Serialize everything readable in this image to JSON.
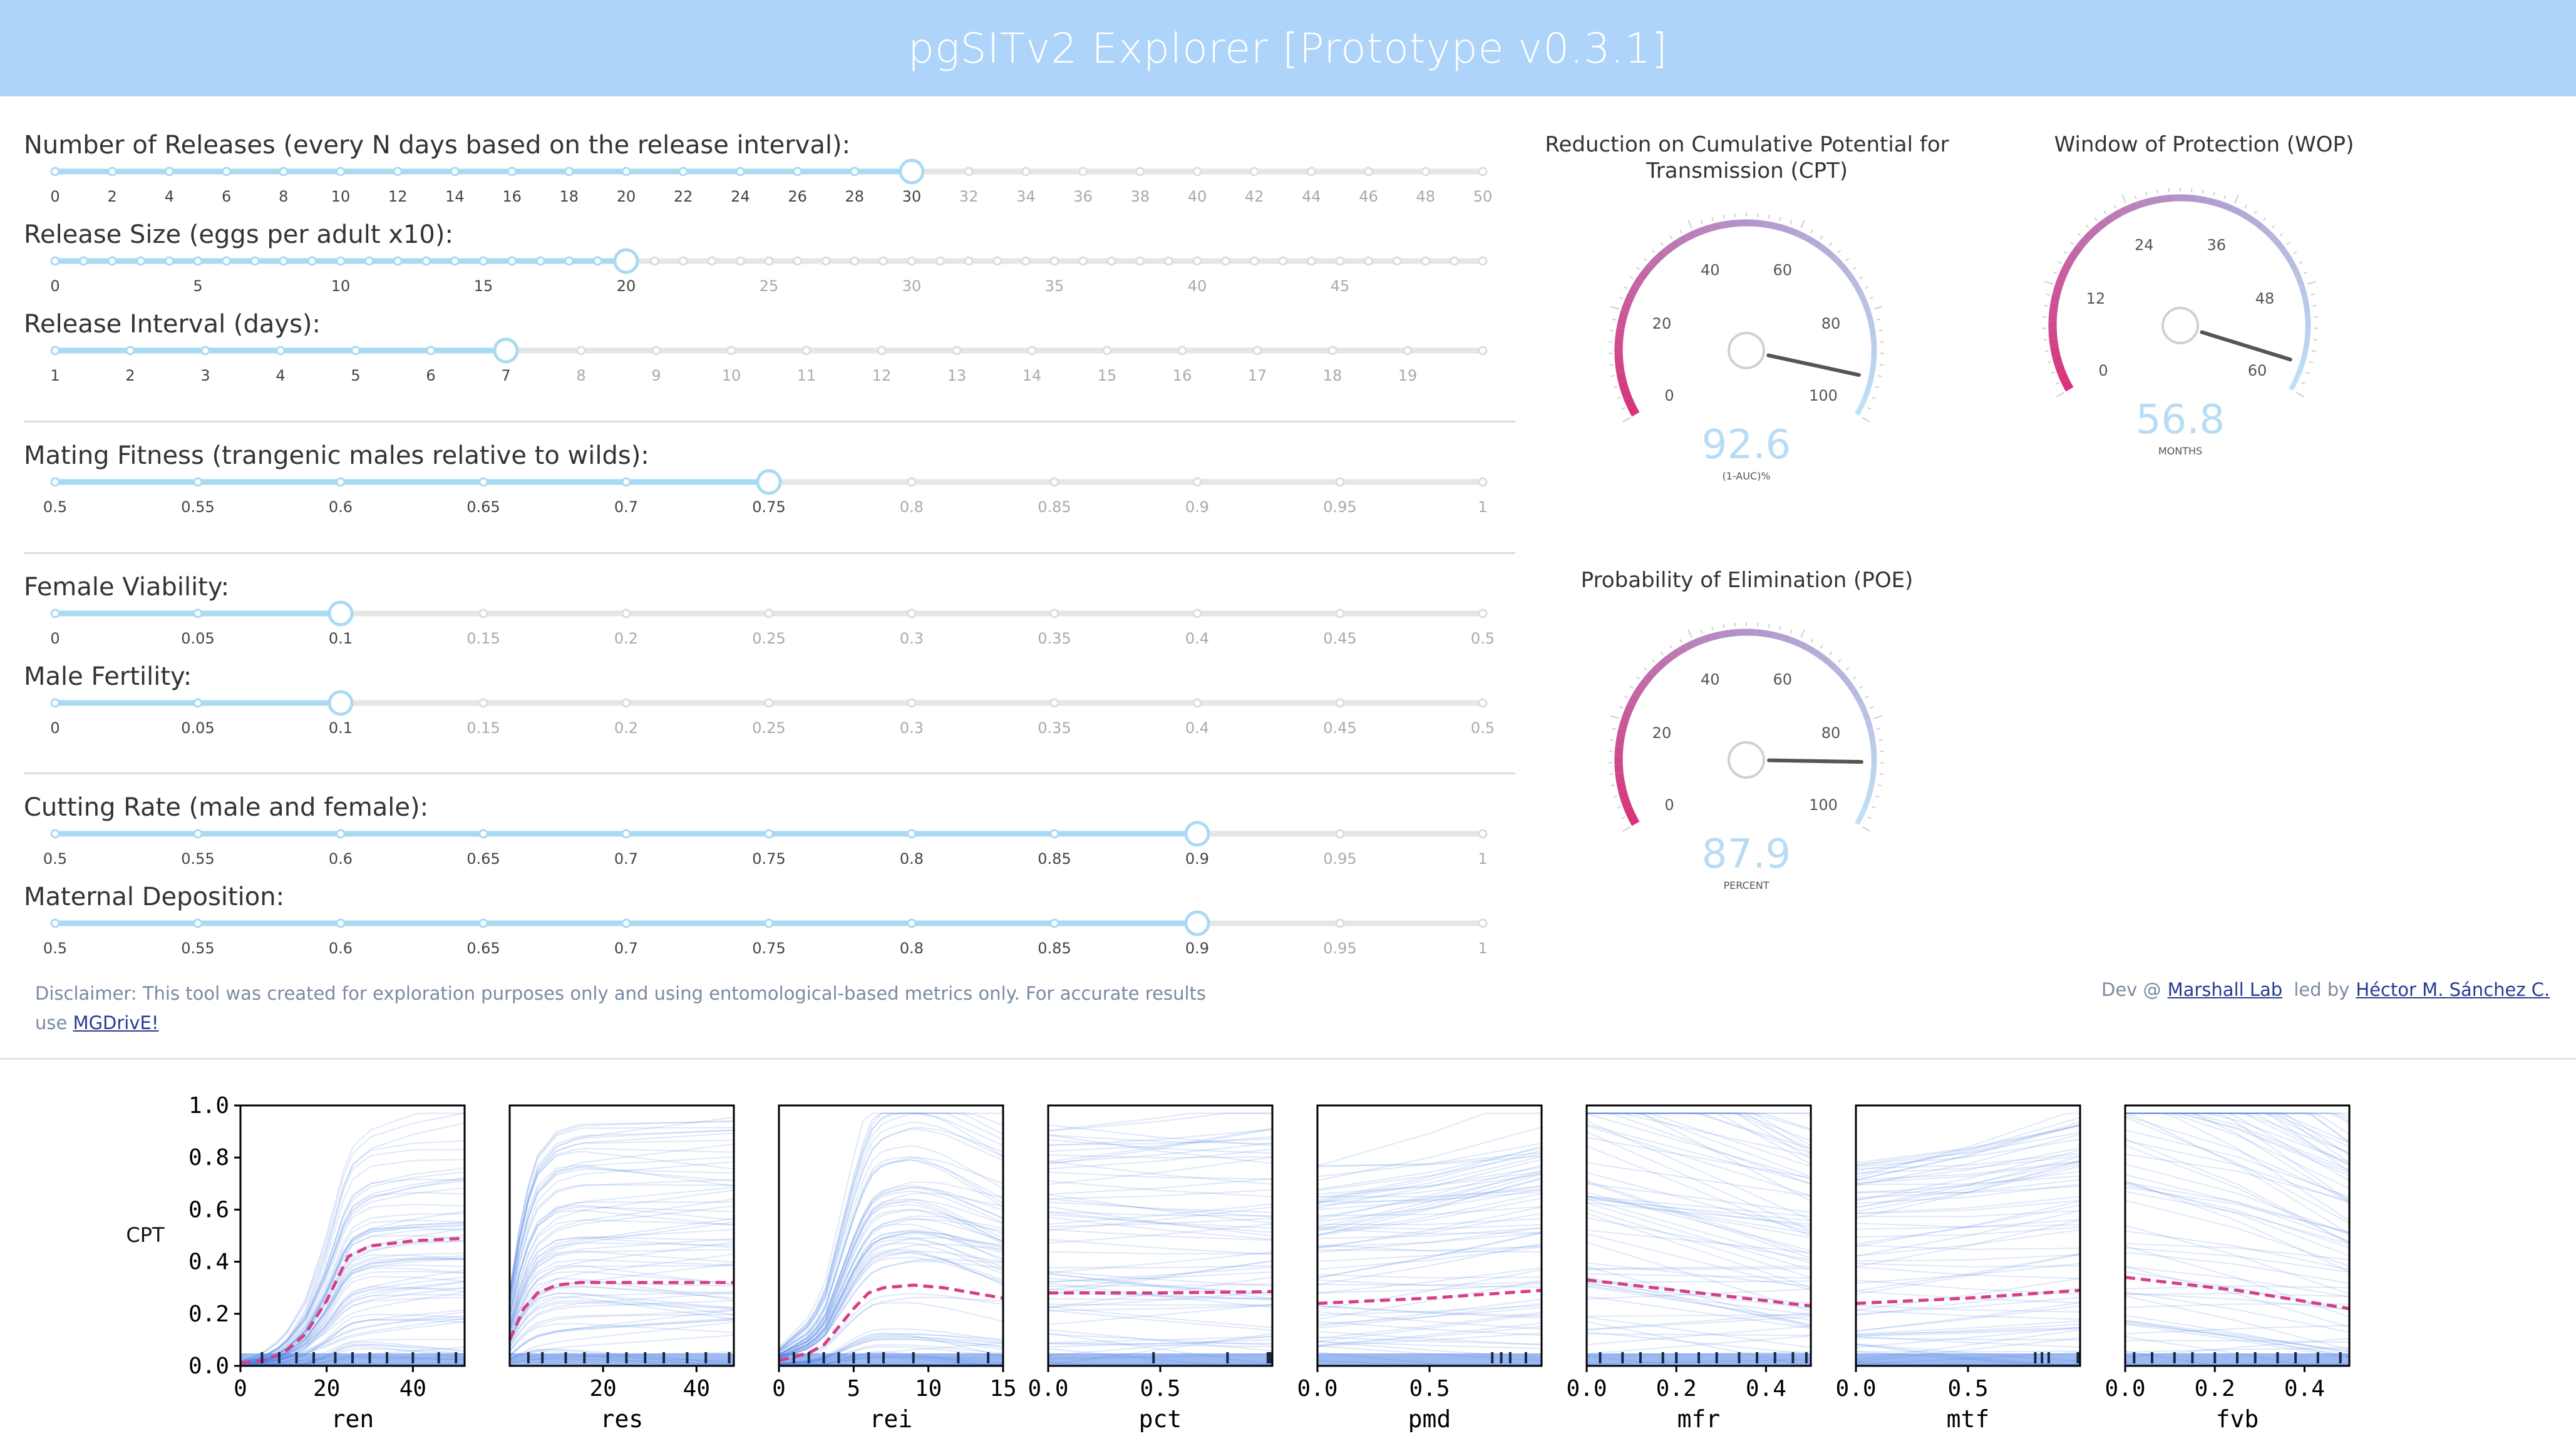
{
  "app": {
    "title": "pgSITv2 Explorer [Prototype v0.3.1]"
  },
  "colors": {
    "header_bg": "#aed4f9",
    "slider_active": "#a9daf4",
    "slider_inactive": "#e6e6e6",
    "gauge_low": "#d8327a",
    "gauge_high": "#bfe4f8",
    "value_text": "#b8dcf4",
    "median_line": "#d63f86",
    "trace": "#4a7fe6"
  },
  "sliders": [
    {
      "label": "Number of Releases (every N days based on the release interval):",
      "ticks": [
        "0",
        "2",
        "4",
        "6",
        "8",
        "10",
        "12",
        "14",
        "16",
        "18",
        "20",
        "22",
        "24",
        "26",
        "28",
        "30",
        "32",
        "34",
        "36",
        "38",
        "40",
        "42",
        "44",
        "46",
        "48",
        "50"
      ],
      "selected_index": 15
    },
    {
      "label": "Release Size (eggs per adult x10):",
      "ticks": [
        "0",
        "",
        "",
        "",
        "",
        "5",
        "",
        "",
        "",
        "",
        "10",
        "",
        "",
        "",
        "",
        "15",
        "",
        "",
        "",
        "",
        "20",
        "",
        "",
        "",
        "",
        "25",
        "",
        "",
        "",
        "",
        "30",
        "",
        "",
        "",
        "",
        "35",
        "",
        "",
        "",
        "",
        "40",
        "",
        "",
        "",
        "",
        "45",
        "",
        "",
        "",
        "",
        ""
      ],
      "selected_index": 20
    },
    {
      "label": "Release Interval (days):",
      "ticks": [
        "1",
        "2",
        "3",
        "4",
        "5",
        "6",
        "7",
        "8",
        "9",
        "10",
        "11",
        "12",
        "13",
        "14",
        "15",
        "16",
        "17",
        "18",
        "19",
        ""
      ],
      "selected_index": 6
    },
    {
      "label": "Mating Fitness (trangenic males relative to wilds):",
      "ticks": [
        "0.5",
        "0.55",
        "0.6",
        "0.65",
        "0.7",
        "0.75",
        "0.8",
        "0.85",
        "0.9",
        "0.95",
        "1"
      ],
      "selected_index": 5
    },
    {
      "label": "Female Viability:",
      "ticks": [
        "0",
        "0.05",
        "0.1",
        "0.15",
        "0.2",
        "0.25",
        "0.3",
        "0.35",
        "0.4",
        "0.45",
        "0.5"
      ],
      "selected_index": 2
    },
    {
      "label": "Male Fertility:",
      "ticks": [
        "0",
        "0.05",
        "0.1",
        "0.15",
        "0.2",
        "0.25",
        "0.3",
        "0.35",
        "0.4",
        "0.45",
        "0.5"
      ],
      "selected_index": 2
    },
    {
      "label": "Cutting Rate (male and female):",
      "ticks": [
        "0.5",
        "0.55",
        "0.6",
        "0.65",
        "0.7",
        "0.75",
        "0.8",
        "0.85",
        "0.9",
        "0.95",
        "1"
      ],
      "selected_index": 8
    },
    {
      "label": "Maternal Deposition:",
      "ticks": [
        "0.5",
        "0.55",
        "0.6",
        "0.65",
        "0.7",
        "0.75",
        "0.8",
        "0.85",
        "0.9",
        "0.95",
        "1"
      ],
      "selected_index": 8
    }
  ],
  "gauges": [
    {
      "title_line1": "Reduction on Cumulative Potential for",
      "title_line2": "Transmission (CPT)",
      "value": 92.6,
      "value_text": "92.6",
      "unit": "(1-AUC)%",
      "max": 100,
      "ticks": [
        "0",
        "20",
        "40",
        "60",
        "80",
        "100"
      ]
    },
    {
      "title_line1": "Window of Protection (WOP)",
      "title_line2": "",
      "value": 56.8,
      "value_text": "56.8",
      "unit": "MONTHS",
      "max": 60,
      "ticks": [
        "0",
        "12",
        "24",
        "36",
        "48",
        "60"
      ]
    },
    {
      "title_line1": "Probability of Elimination (POE)",
      "title_line2": "",
      "value": 87.9,
      "value_text": "87.9",
      "unit": "PERCENT",
      "max": 100,
      "ticks": [
        "0",
        "20",
        "40",
        "60",
        "80",
        "100"
      ]
    }
  ],
  "disclaimer": {
    "text": "Disclaimer: This tool was created for exploration purposes only and using entomological-based metrics only. For accurate results",
    "text2": "use",
    "link": "MGDrivE!"
  },
  "credits": {
    "prefix": "Dev @",
    "lab": "Marshall Lab",
    "middle": "led by",
    "author": "Héctor M. Sánchez C."
  },
  "chart_data": {
    "type": "line",
    "ylabel": "CPT",
    "ylim": [
      0,
      1
    ],
    "yticks": [
      "0.0",
      "0.2",
      "0.4",
      "0.6",
      "0.8",
      "1.0"
    ],
    "panels": [
      {
        "xlabel": "ren",
        "xlim": [
          0,
          52
        ],
        "xticks": [
          0,
          20,
          40
        ],
        "median": [
          [
            0,
            0.01
          ],
          [
            5,
            0.02
          ],
          [
            10,
            0.05
          ],
          [
            15,
            0.12
          ],
          [
            20,
            0.25
          ],
          [
            25,
            0.42
          ],
          [
            30,
            0.46
          ],
          [
            40,
            0.48
          ],
          [
            52,
            0.49
          ]
        ],
        "rug": [
          5,
          9,
          13,
          17,
          22,
          26,
          30,
          34,
          40,
          46,
          50
        ]
      },
      {
        "xlabel": "res",
        "xlim": [
          0,
          48
        ],
        "xticks": [
          20,
          40
        ],
        "median": [
          [
            0,
            0.1
          ],
          [
            3,
            0.22
          ],
          [
            6,
            0.28
          ],
          [
            10,
            0.31
          ],
          [
            15,
            0.32
          ],
          [
            25,
            0.32
          ],
          [
            35,
            0.32
          ],
          [
            48,
            0.32
          ]
        ],
        "rug": [
          4,
          7,
          12,
          16,
          21,
          25,
          29,
          33,
          38,
          42,
          47
        ]
      },
      {
        "xlabel": "rei",
        "xlim": [
          0,
          15
        ],
        "xticks": [
          0,
          5,
          10,
          15
        ],
        "median": [
          [
            0,
            0.02
          ],
          [
            2,
            0.05
          ],
          [
            3,
            0.08
          ],
          [
            4,
            0.15
          ],
          [
            5,
            0.22
          ],
          [
            6,
            0.28
          ],
          [
            7,
            0.3
          ],
          [
            9,
            0.31
          ],
          [
            11,
            0.3
          ],
          [
            13,
            0.28
          ],
          [
            15,
            0.26
          ]
        ],
        "rug": [
          1,
          2,
          3,
          4,
          5,
          6,
          7,
          9,
          12,
          14
        ]
      },
      {
        "xlabel": "pct",
        "xlim": [
          0,
          1
        ],
        "xticks": [
          0,
          0.5
        ],
        "median": [
          [
            0,
            0.28
          ],
          [
            0.5,
            0.28
          ],
          [
            1,
            0.285
          ]
        ],
        "rug": [
          0.47,
          0.8,
          0.98,
          0.99
        ]
      },
      {
        "xlabel": "pmd",
        "xlim": [
          0,
          1
        ],
        "xticks": [
          0,
          0.5
        ],
        "median": [
          [
            0,
            0.24
          ],
          [
            0.5,
            0.26
          ],
          [
            1,
            0.29
          ]
        ],
        "rug": [
          0.78,
          0.82,
          0.86,
          0.93
        ]
      },
      {
        "xlabel": "mfr",
        "xlim": [
          0,
          0.5
        ],
        "xticks": [
          0,
          0.2,
          0.4
        ],
        "median": [
          [
            0,
            0.33
          ],
          [
            0.25,
            0.28
          ],
          [
            0.5,
            0.23
          ]
        ],
        "rug": [
          0.03,
          0.08,
          0.12,
          0.17,
          0.2,
          0.25,
          0.29,
          0.34,
          0.38,
          0.42,
          0.46,
          0.49
        ]
      },
      {
        "xlabel": "mtf",
        "xlim": [
          0,
          1
        ],
        "xticks": [
          0,
          0.5
        ],
        "median": [
          [
            0,
            0.24
          ],
          [
            0.5,
            0.26
          ],
          [
            1,
            0.29
          ]
        ],
        "rug": [
          0.8,
          0.83,
          0.86,
          0.99
        ]
      },
      {
        "xlabel": "fvb",
        "xlim": [
          0,
          0.5
        ],
        "xticks": [
          0,
          0.2,
          0.4
        ],
        "median": [
          [
            0,
            0.34
          ],
          [
            0.25,
            0.29
          ],
          [
            0.5,
            0.22
          ]
        ],
        "rug": [
          0.02,
          0.06,
          0.11,
          0.15,
          0.2,
          0.25,
          0.29,
          0.34,
          0.38,
          0.43,
          0.48
        ]
      }
    ]
  }
}
